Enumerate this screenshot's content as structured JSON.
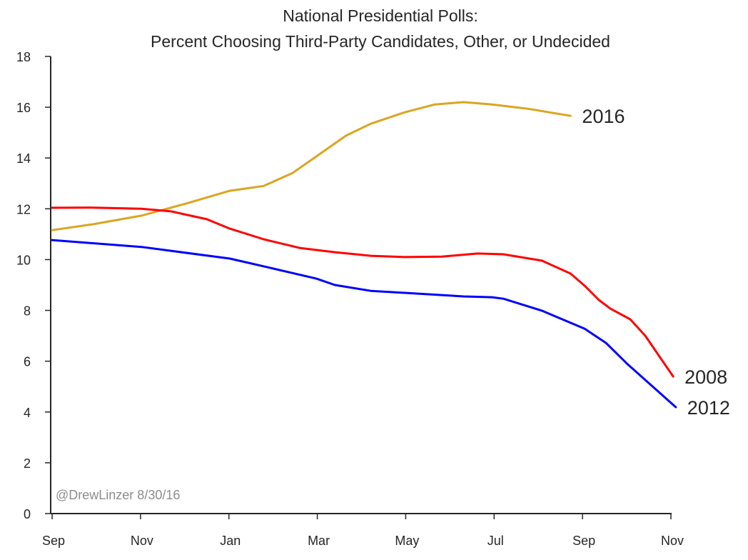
{
  "chart_data": {
    "type": "line",
    "title": [
      "National Presidential Polls:",
      "Percent Choosing Third-Party Candidates, Other, or Undecided"
    ],
    "xlabel": "",
    "ylabel": "",
    "x_unit": "months since Sep 1 of year before election",
    "xlim": [
      0,
      14
    ],
    "ylim": [
      0,
      18
    ],
    "x_ticks": [
      0,
      2,
      4,
      6,
      8,
      10,
      12,
      14
    ],
    "x_tick_labels": [
      "Sep",
      "Nov",
      "Jan",
      "Mar",
      "May",
      "Jul",
      "Sep",
      "Nov"
    ],
    "y_ticks": [
      0,
      2,
      4,
      6,
      8,
      10,
      12,
      14,
      16,
      18
    ],
    "y_tick_labels": [
      "0",
      "2",
      "4",
      "6",
      "8",
      "10",
      "12",
      "14",
      "16",
      "18"
    ],
    "grid": false,
    "legend": "inline labels at line ends",
    "annotation": "@DrewLinzer 8/30/16",
    "series": [
      {
        "name": "2016",
        "color": "#DAA520",
        "x": [
          0,
          0.92,
          2.02,
          3.02,
          4.02,
          4.79,
          5.44,
          6.0,
          6.65,
          7.21,
          7.98,
          8.66,
          9.31,
          9.95,
          10.76,
          11.73
        ],
        "y": [
          11.16,
          11.39,
          11.73,
          12.2,
          12.71,
          12.9,
          13.41,
          14.09,
          14.88,
          15.35,
          15.8,
          16.11,
          16.2,
          16.11,
          15.94,
          15.66
        ]
      },
      {
        "name": "2008",
        "color": "#FF0000",
        "x": [
          0,
          0.84,
          2.02,
          2.69,
          3.5,
          4.02,
          4.79,
          5.6,
          6.4,
          7.21,
          7.98,
          8.82,
          9.63,
          10.21,
          11.08,
          11.73,
          12.05,
          12.37,
          12.63,
          13.08,
          13.42,
          14.05
        ],
        "y": [
          12.04,
          12.05,
          12.0,
          11.9,
          11.59,
          11.22,
          10.8,
          10.46,
          10.29,
          10.15,
          10.1,
          10.12,
          10.24,
          10.21,
          9.96,
          9.45,
          8.97,
          8.41,
          8.07,
          7.65,
          7.0,
          5.4
        ]
      },
      {
        "name": "2012",
        "color": "#0000FF",
        "x": [
          0,
          2.02,
          4.02,
          4.95,
          5.98,
          6.4,
          7.21,
          7.98,
          9.31,
          9.95,
          10.21,
          11.08,
          12.05,
          12.53,
          13.02,
          14.11
        ],
        "y": [
          10.77,
          10.5,
          10.04,
          9.67,
          9.25,
          9.0,
          8.77,
          8.69,
          8.55,
          8.52,
          8.46,
          7.99,
          7.28,
          6.72,
          5.88,
          4.19
        ]
      }
    ]
  }
}
